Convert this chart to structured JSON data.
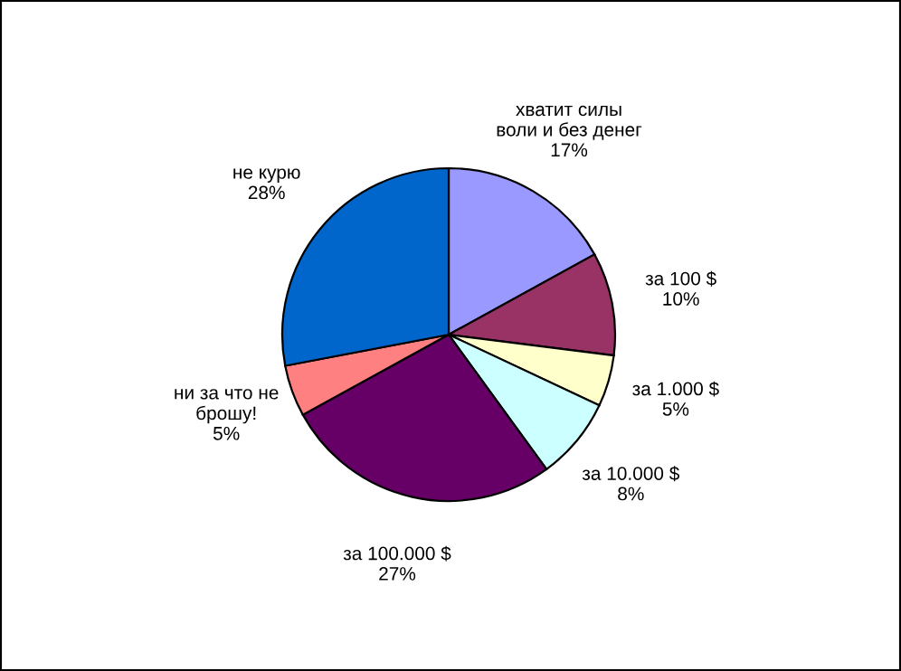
{
  "chart_data": {
    "type": "pie",
    "categories": [
      "хватит силы\nволи и без денег",
      "за 100 $",
      "за 1.000 $",
      "за 10.000 $",
      "за 100.000 $",
      "ни за что не\nброшу!",
      "не курю"
    ],
    "values": [
      17,
      10,
      5,
      8,
      27,
      5,
      28
    ],
    "value_labels": [
      "17%",
      "10%",
      "5%",
      "8%",
      "27%",
      "5%",
      "28%"
    ],
    "colors": [
      "#9999ff",
      "#993366",
      "#ffffcc",
      "#ccffff",
      "#660066",
      "#ff8080",
      "#0066cc"
    ],
    "legend": false
  }
}
